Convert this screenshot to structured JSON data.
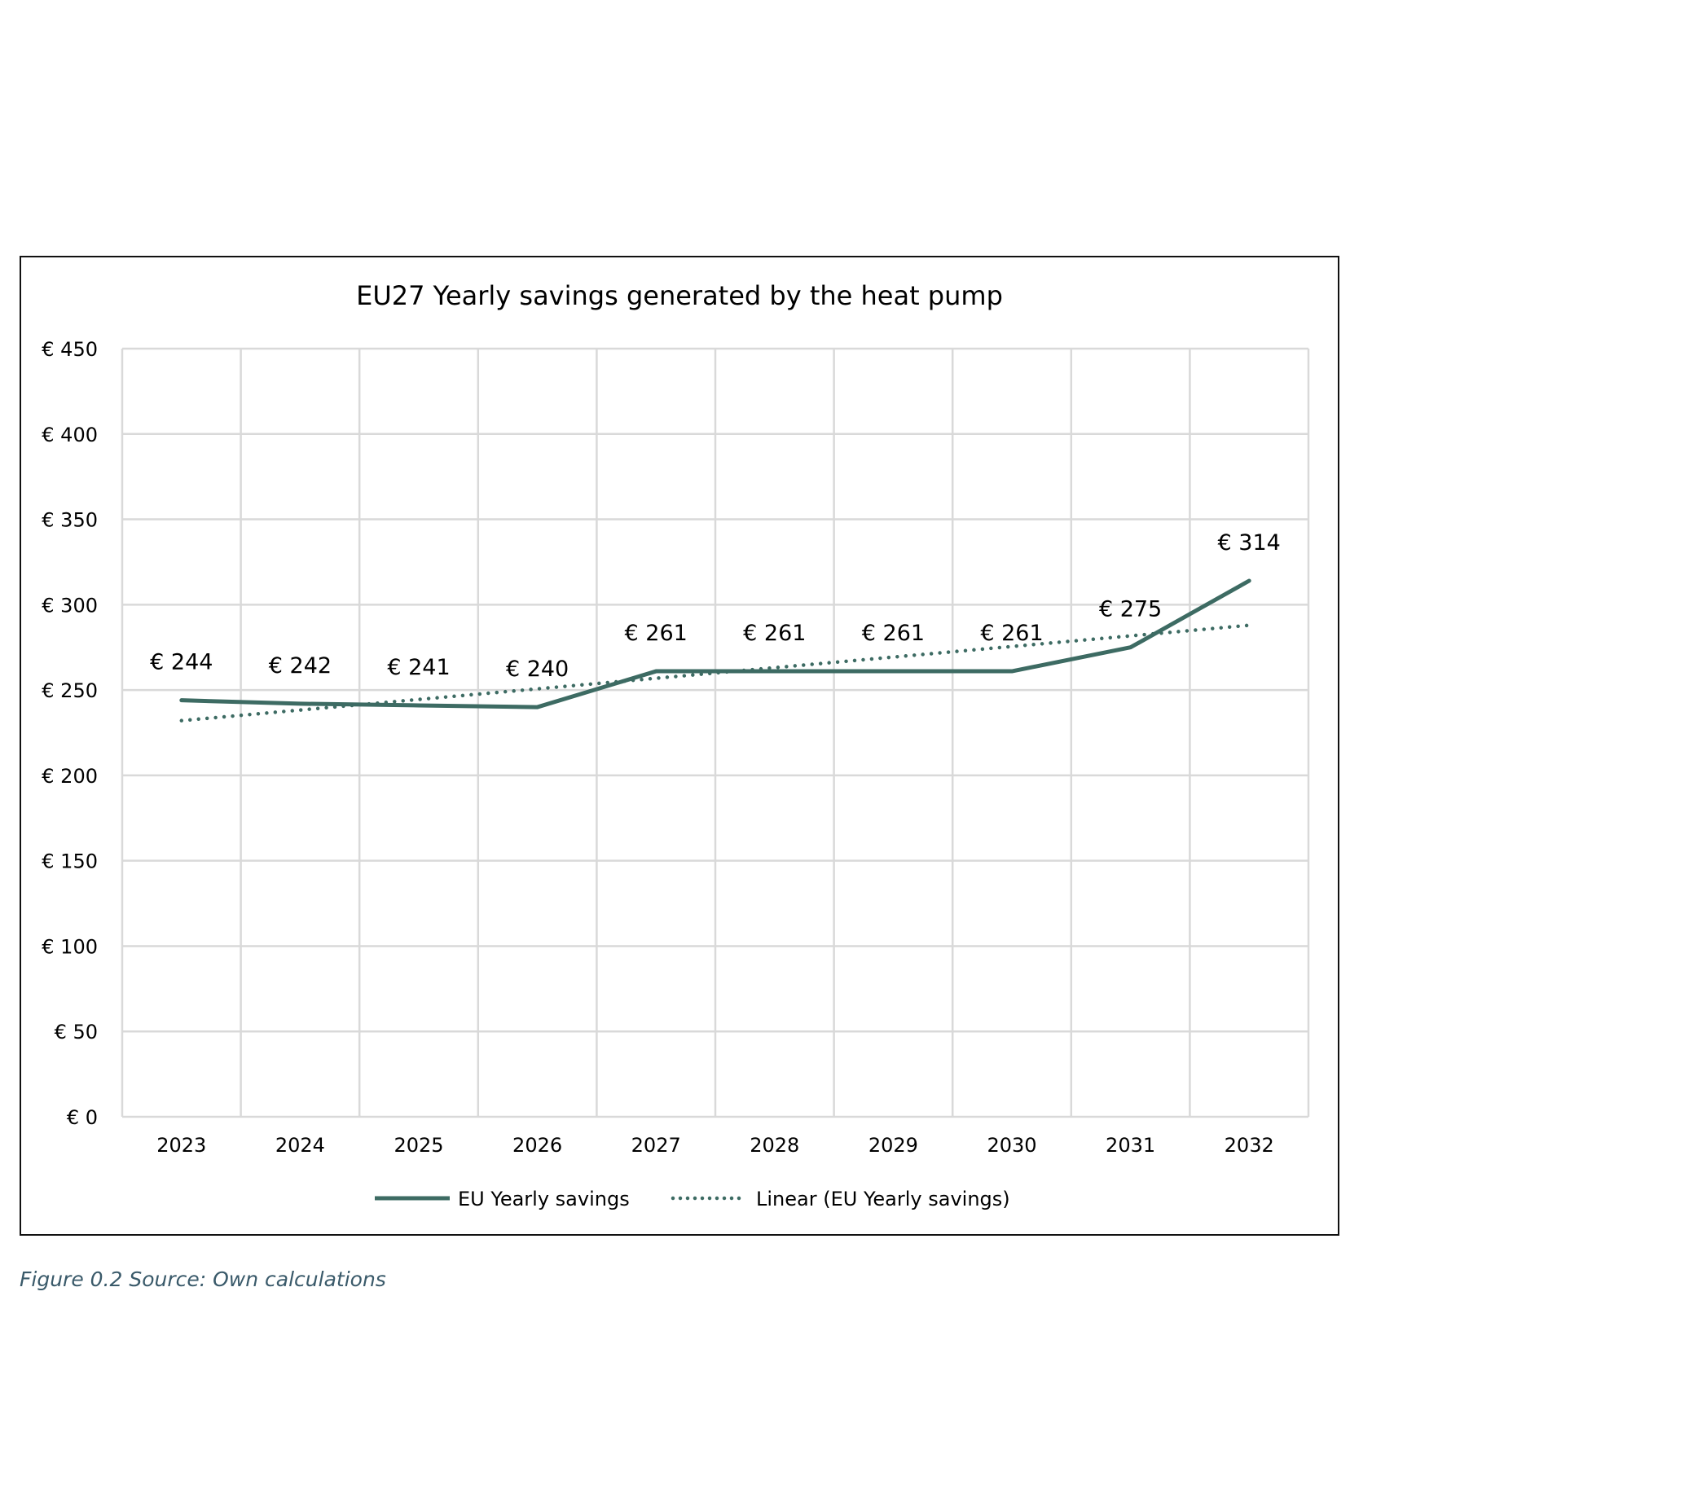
{
  "chart_data": {
    "type": "line",
    "title": "EU27 Yearly savings generated by the heat pump",
    "xlabel": "",
    "ylabel": "",
    "categories": [
      "2023",
      "2024",
      "2025",
      "2026",
      "2027",
      "2028",
      "2029",
      "2030",
      "2031",
      "2032"
    ],
    "series": [
      {
        "name": "EU Yearly savings",
        "values": [
          244,
          242,
          241,
          240,
          261,
          261,
          261,
          261,
          275,
          314
        ],
        "style": "solid",
        "data_labels": [
          "€ 244",
          "€ 242",
          "€ 241",
          "€ 240",
          "€ 261",
          "€ 261",
          "€ 261",
          "€ 261",
          "€ 275",
          "€ 314"
        ]
      },
      {
        "name": "Linear (EU Yearly savings)",
        "trendline_of": 0,
        "style": "dotted"
      }
    ],
    "ylim": [
      0,
      450
    ],
    "yticks": [
      0,
      50,
      100,
      150,
      200,
      250,
      300,
      350,
      400,
      450
    ],
    "ytick_labels": [
      "€ 0",
      "€ 50",
      "€ 100",
      "€ 150",
      "€ 200",
      "€ 250",
      "€ 300",
      "€ 350",
      "€ 400",
      "€ 450"
    ],
    "grid": true,
    "legend": "bottom",
    "colors": {
      "line": "#3d6b63",
      "grid": "#d9d9d9",
      "text": "#000000"
    }
  },
  "caption": "Figure 0.2 Source: Own calculations"
}
